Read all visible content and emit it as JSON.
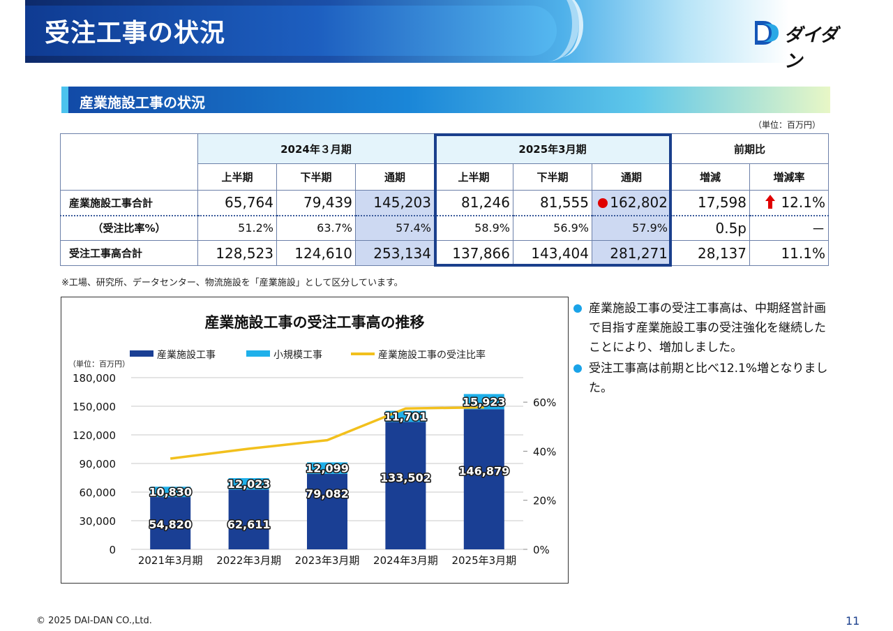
{
  "header": {
    "title": "受注工事の状況",
    "logo_text": "ダイダン"
  },
  "section": {
    "title": "産業施設工事の状況",
    "unit": "（単位：百万円）"
  },
  "table": {
    "year_headers": [
      "2024年３月期",
      "2025年3月期",
      "前期比"
    ],
    "sub_headers": [
      "上半期",
      "下半期",
      "通期",
      "上半期",
      "下半期",
      "通期",
      "増減",
      "増減率"
    ],
    "rows": [
      {
        "label": "産業施設工事合計",
        "cells": [
          "65,764",
          "79,439",
          "145,203",
          "81,246",
          "81,555",
          "162,802",
          "17,598",
          "12.1%"
        ]
      },
      {
        "label": "（受注比率%）",
        "cells": [
          "51.2%",
          "63.7%",
          "57.4%",
          "58.9%",
          "56.9%",
          "57.9%",
          "0.5p",
          "－"
        ]
      },
      {
        "label": "受注工事高合計",
        "cells": [
          "128,523",
          "124,610",
          "253,134",
          "137,866",
          "143,404",
          "281,271",
          "28,137",
          "11.1%"
        ]
      }
    ],
    "note": "※工場、研究所、データセンター、物流施設を「産業施設」として区分しています。"
  },
  "chart_data": {
    "type": "bar",
    "title": "産業施設工事の受注工事高の推移",
    "unit_label": "（単位：百万円）",
    "categories": [
      "2021年3月期",
      "2022年3月期",
      "2023年3月期",
      "2024年3月期",
      "2025年3月期"
    ],
    "series": [
      {
        "name": "産業施設工事",
        "type": "bar",
        "color": "#1a3f94",
        "values": [
          54820,
          62611,
          79082,
          133502,
          146879
        ],
        "labels": [
          "54,820",
          "62,611",
          "79,082",
          "133,502",
          "146,879"
        ]
      },
      {
        "name": "小規模工事",
        "type": "bar",
        "color": "#1fb0ea",
        "values": [
          10830,
          12023,
          12099,
          11701,
          15923
        ],
        "labels": [
          "10,830",
          "12,023",
          "12,099",
          "11,701",
          "15,923"
        ]
      },
      {
        "name": "産業施設工事の受注比率",
        "type": "line",
        "axis": "right",
        "color": "#f2c01d",
        "values": [
          37,
          41,
          44.5,
          57.4,
          57.9
        ]
      }
    ],
    "ylim": [
      0,
      180000
    ],
    "yticks": [
      "180,000",
      "150,000",
      "120,000",
      "90,000",
      "60,000",
      "30,000",
      "0"
    ],
    "y2lim": [
      0,
      70
    ],
    "y2ticks": [
      "60%",
      "40%",
      "20%",
      "0%"
    ],
    "grid": true,
    "legend": "top"
  },
  "bullets": [
    "産業施設工事の受注工事高は、中期経営計画で目指す産業施設工事の受注強化を継続したことにより、増加しました。",
    "受注工事高は前期と比べ12.1%増となりました。"
  ],
  "footer": {
    "copyright": "© 2025 DAI-DAN CO.,Ltd.",
    "page": "11"
  }
}
